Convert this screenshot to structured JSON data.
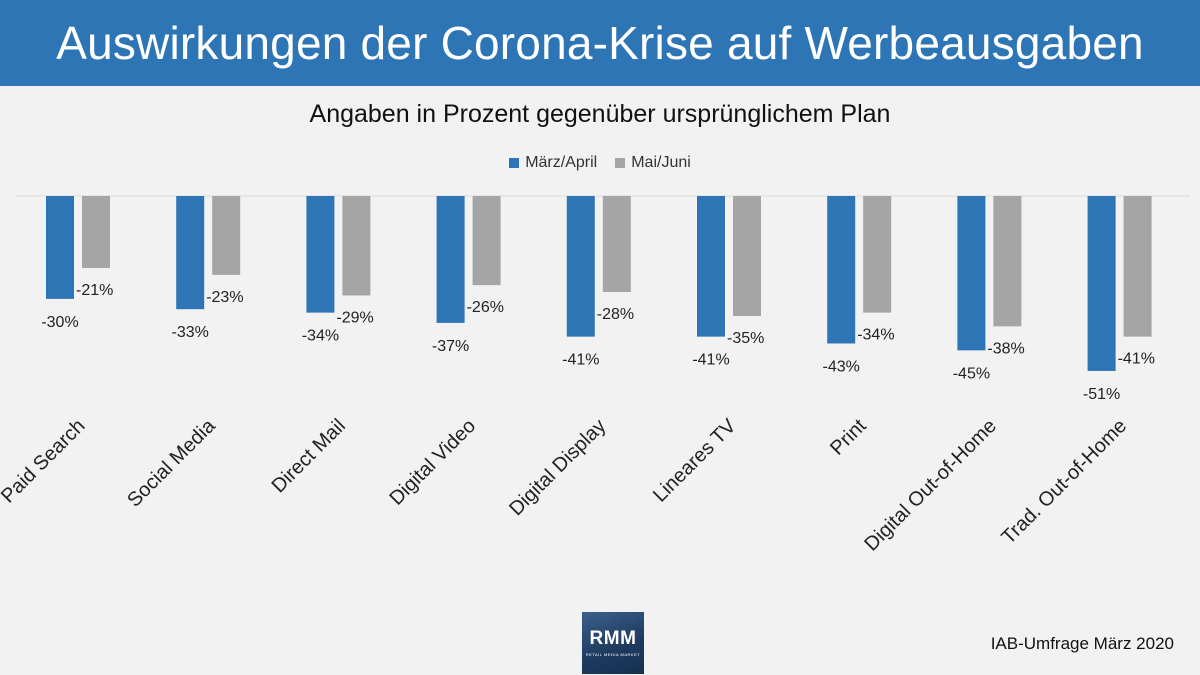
{
  "header": {
    "title": "Auswirkungen der Corona-Krise auf Werbeausgaben"
  },
  "logo": {
    "main": "RMM",
    "sub": "RETAIL MEDIA MARKET"
  },
  "footer": {
    "source": "IAB-Umfrage März 2020"
  },
  "colors": {
    "header_bg": "#2e75b6",
    "series1": "#2e75b6",
    "series2": "#a5a5a5",
    "background": "#f2f2f2"
  },
  "chart_data": {
    "type": "bar",
    "title": "Angaben in Prozent gegenüber ursprünglichem Plan",
    "categories": [
      "Paid Search",
      "Social Media",
      "Direct Mail",
      "Digital Video",
      "Digital Display",
      "Lineares TV",
      "Print",
      "Digital Out-of-Home",
      "Trad. Out-of-Home"
    ],
    "series": [
      {
        "name": "März/April",
        "values": [
          -30,
          -33,
          -34,
          -37,
          -41,
          -41,
          -43,
          -45,
          -51
        ],
        "labels": [
          "-30%",
          "-33%",
          "-34%",
          "-37%",
          "-41%",
          "-41%",
          "-43%",
          "-45%",
          "-51%"
        ],
        "color": "#2e75b6"
      },
      {
        "name": "Mai/Juni",
        "values": [
          -21,
          -23,
          -29,
          -26,
          -28,
          -35,
          -34,
          -38,
          -41
        ],
        "labels": [
          "-21%",
          "-23%",
          "-29%",
          "-26%",
          "-28%",
          "-35%",
          "-34%",
          "-38%",
          "-41%"
        ],
        "color": "#a5a5a5"
      }
    ],
    "legend_position": "top-center",
    "grid": false,
    "axis_labels_rotated": true
  }
}
